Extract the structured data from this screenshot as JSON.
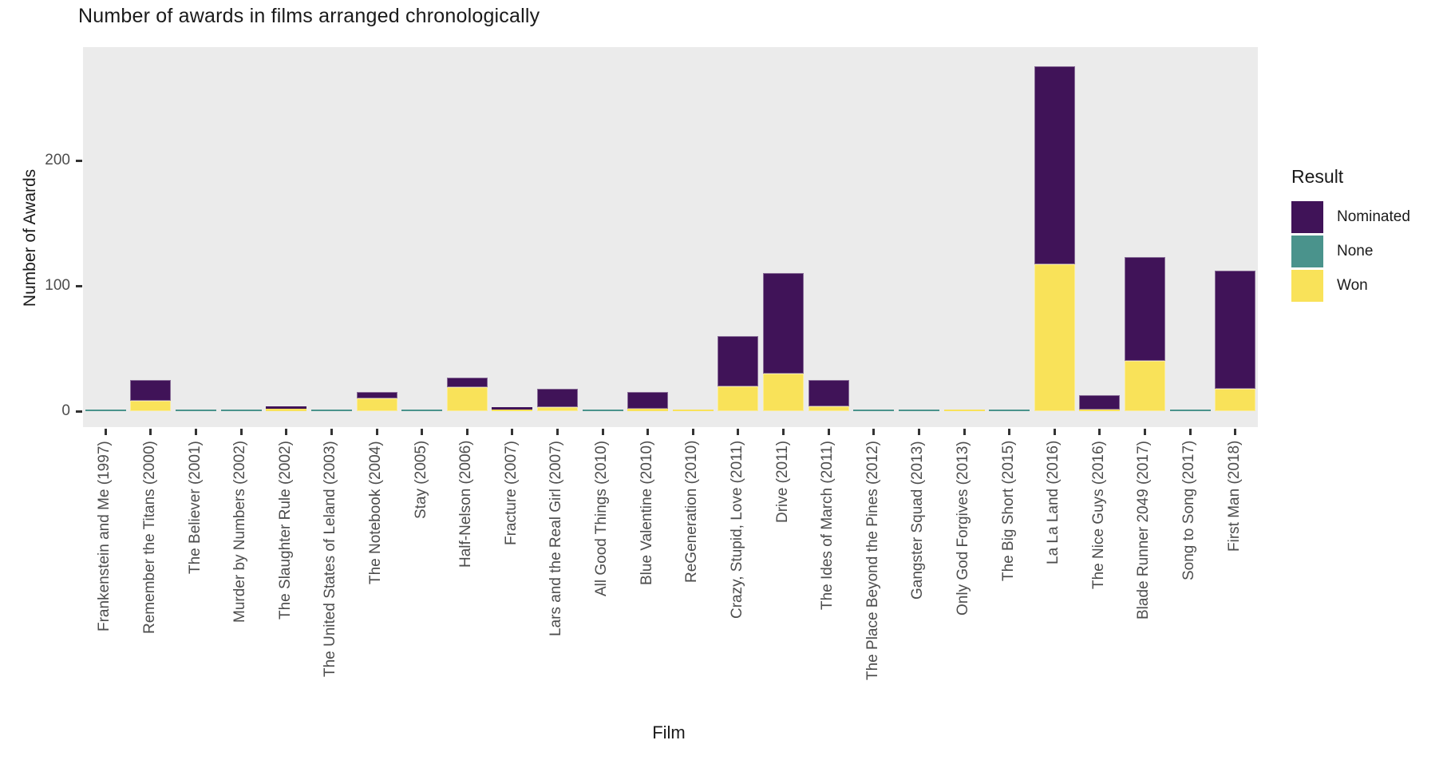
{
  "title": "Number of awards in films arranged chronologically",
  "axes": {
    "x_title": "Film",
    "y_title": "Number of Awards",
    "y_ticks": [
      0,
      100,
      200
    ]
  },
  "legend": {
    "title": "Result",
    "items": [
      {
        "label": "Nominated",
        "color": "#401358"
      },
      {
        "label": "None",
        "color": "#4A938C"
      },
      {
        "label": "Won",
        "color": "#F9E259"
      }
    ]
  },
  "colors": {
    "panel_background": "#EBEBEB",
    "page_background": "#FFFFFF",
    "axis_text": "#4D4D4D",
    "tick_mark": "#333333",
    "title_text": "#1A1A1A",
    "nominated": "#401358",
    "none": "#4A938C",
    "won": "#F9E259"
  },
  "chart_data": {
    "type": "bar",
    "stacked": true,
    "title": "Number of awards in films arranged chronologically",
    "xlabel": "Film",
    "ylabel": "Number of Awards",
    "ylim": [
      0,
      290
    ],
    "grid": false,
    "legend_position": "right",
    "legend_title": "Result",
    "stack_order_bottom_to_top": [
      "Won",
      "None",
      "Nominated"
    ],
    "categories": [
      "Frankenstein and Me (1997)",
      "Remember the Titans (2000)",
      "The Believer (2001)",
      "Murder by Numbers (2002)",
      "The Slaughter Rule (2002)",
      "The United States of Leland (2003)",
      "The Notebook (2004)",
      "Stay (2005)",
      "Half-Nelson (2006)",
      "Fracture (2007)",
      "Lars and the Real Girl (2007)",
      "All Good Things (2010)",
      "Blue Valentine (2010)",
      "ReGeneration (2010)",
      "Crazy, Stupid, Love (2011)",
      "Drive (2011)",
      "The Ides of March (2011)",
      "The Place Beyond the Pines (2012)",
      "Gangster Squad (2013)",
      "Only God Forgives (2013)",
      "The Big Short (2015)",
      "La La Land (2016)",
      "The Nice Guys (2016)",
      "Blade Runner 2049 (2017)",
      "Song to Song (2017)",
      "First Man (2018)"
    ],
    "series": [
      {
        "name": "Nominated",
        "color": "#401358",
        "values": [
          0,
          17,
          0,
          0,
          2,
          0,
          5,
          0,
          8,
          2,
          15,
          0,
          13,
          0,
          40,
          80,
          21,
          0,
          0,
          0,
          0,
          158,
          12,
          83,
          0,
          94
        ]
      },
      {
        "name": "None",
        "color": "#4A938C",
        "values": [
          1,
          0,
          1,
          1,
          0,
          1,
          0,
          1,
          0,
          0,
          0,
          1,
          0,
          0,
          0,
          0,
          0,
          1,
          1,
          0,
          1,
          0,
          0,
          0,
          1,
          0
        ]
      },
      {
        "name": "Won",
        "color": "#F9E259",
        "values": [
          0,
          8,
          0,
          0,
          2,
          0,
          10,
          0,
          19,
          1,
          3,
          0,
          2,
          1,
          20,
          30,
          4,
          0,
          0,
          1,
          0,
          117,
          1,
          40,
          0,
          18
        ]
      }
    ]
  }
}
